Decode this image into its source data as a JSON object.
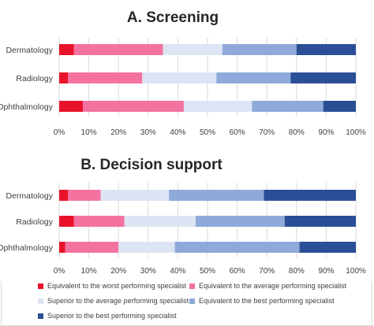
{
  "chart_data": [
    {
      "type": "bar",
      "orientation": "horizontal",
      "stacked": true,
      "title": "A. Screening",
      "categories": [
        "Dermatology",
        "Radiology",
        "Ophthalmology"
      ],
      "series": [
        {
          "name": "Equivalent to the worst performing specialist",
          "values": [
            5,
            3,
            8
          ],
          "color": "#e8132a"
        },
        {
          "name": "Equivalent to the average performing specialist",
          "values": [
            30,
            25,
            34
          ],
          "color": "#f472a0"
        },
        {
          "name": "Superior to the average performing specialist",
          "values": [
            20,
            25,
            23
          ],
          "color": "#dde4f4"
        },
        {
          "name": "Equivalent to the best performing specialist",
          "values": [
            25,
            25,
            24
          ],
          "color": "#8fa9da"
        },
        {
          "name": "Superior to the best performing specialist",
          "values": [
            20,
            22,
            11
          ],
          "color": "#2b4f96"
        }
      ],
      "xlim": [
        0,
        100
      ],
      "xticks": [
        "0%",
        "10%",
        "20%",
        "30%",
        "40%",
        "50%",
        "60%",
        "70%",
        "80%",
        "90%",
        "100%"
      ],
      "grid": true
    },
    {
      "type": "bar",
      "orientation": "horizontal",
      "stacked": true,
      "title": "B. Decision support",
      "categories": [
        "Dermatology",
        "Radiology",
        "Ophthalmology"
      ],
      "series": [
        {
          "name": "Equivalent to the worst performing specialist",
          "values": [
            3,
            5,
            2
          ],
          "color": "#e8132a"
        },
        {
          "name": "Equivalent to the average performing specialist",
          "values": [
            11,
            17,
            18
          ],
          "color": "#f472a0"
        },
        {
          "name": "Superior to the average performing specialist",
          "values": [
            23,
            24,
            19
          ],
          "color": "#dde4f4"
        },
        {
          "name": "Equivalent to the best performing specialist",
          "values": [
            32,
            30,
            42
          ],
          "color": "#8fa9da"
        },
        {
          "name": "Superior to the best performing specialist",
          "values": [
            31,
            24,
            19
          ],
          "color": "#2b4f96"
        }
      ],
      "xlim": [
        0,
        100
      ],
      "xticks": [
        "0%",
        "10%",
        "20%",
        "30%",
        "40%",
        "50%",
        "60%",
        "70%",
        "80%",
        "90%",
        "100%"
      ],
      "grid": true
    }
  ],
  "legend": {
    "placement": "bottom",
    "items": [
      {
        "label": "Equivalent to the worst performing specialist",
        "color": "#e8132a"
      },
      {
        "label": "Equivalent to the average performing specialist",
        "color": "#f472a0"
      },
      {
        "label": "Superior to the average performing specialist",
        "color": "#dde4f4"
      },
      {
        "label": "Equivalent to the best performing specialist",
        "color": "#8fa9da"
      },
      {
        "label": "Superior to the best performing specialist",
        "color": "#2b4f96"
      }
    ]
  }
}
